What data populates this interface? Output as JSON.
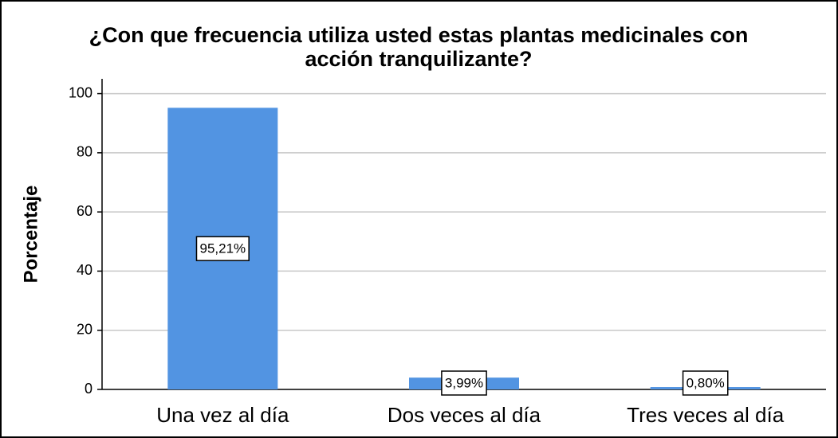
{
  "chart_data": {
    "type": "bar",
    "title": "¿Con que frecuencia utiliza usted estas plantas medicinales con acción tranquilizante?",
    "title_lines": [
      "¿Con que frecuencia utiliza usted estas plantas medicinales con",
      "acción tranquilizante?"
    ],
    "y_label": "Porcentaje",
    "categories": [
      "Una vez al día",
      "Dos veces al día",
      "Tres veces al día"
    ],
    "values": [
      95.21,
      3.99,
      0.8
    ],
    "value_labels": [
      "95,21%",
      "3,99%",
      "0,80%"
    ],
    "color": "#5294e2",
    "ylim": [
      0,
      105
    ],
    "yticks": [
      0,
      20,
      40,
      60,
      80,
      100
    ],
    "grid": true
  }
}
